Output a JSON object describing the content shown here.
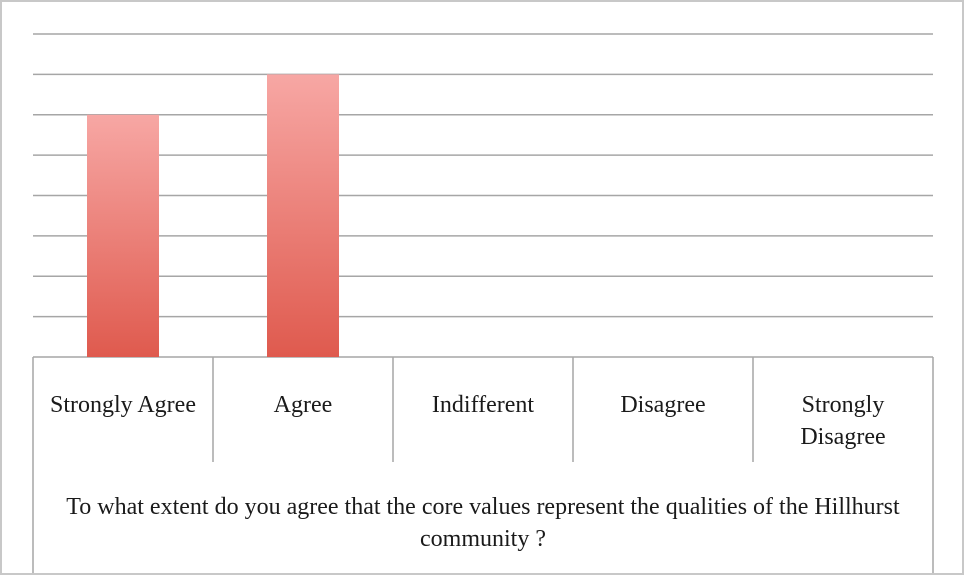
{
  "chart_data": {
    "type": "bar",
    "categories": [
      "Strongly Agree",
      "Agree",
      "Indifferent",
      "Disagree",
      "Strongly Disagree"
    ],
    "values": [
      6,
      7,
      0,
      0,
      0
    ],
    "title": "",
    "xlabel": "To what extent do you agree that the core values represent the qualities of the Hillhurst community ?",
    "ylabel": "",
    "ylim": [
      0,
      8
    ],
    "grid": true,
    "legend": "none",
    "bar_color_top": "#f7a7a4",
    "bar_color_bottom": "#df5a4e",
    "gridline_color": "#a6a6a6"
  }
}
